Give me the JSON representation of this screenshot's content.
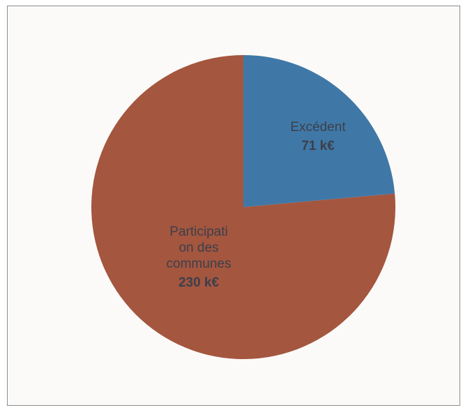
{
  "chart_data": {
    "type": "pie",
    "title": "",
    "slices": [
      {
        "label_lines": [
          "Excédent"
        ],
        "value_label": "71 k€",
        "value": 71,
        "color": "#3f78a7"
      },
      {
        "label_lines": [
          "Participati",
          "on des",
          "communes"
        ],
        "value_label": "230 k€",
        "value": 230,
        "color": "#a4563f"
      }
    ],
    "legend": "none",
    "start_angle_deg": 0,
    "direction": "clockwise"
  }
}
